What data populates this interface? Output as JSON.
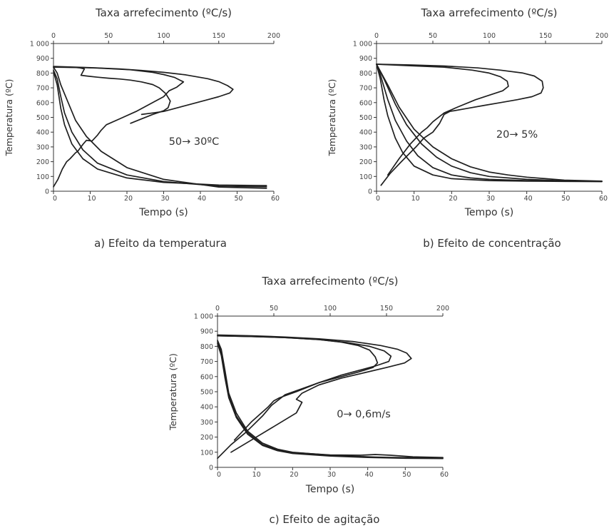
{
  "figure": {
    "top_axis_label": "Taxa arrefecimento (ºC/s)",
    "bottom_axis_label": "Tempo  (s)",
    "y_axis_label": "Temperatura (ºC)"
  },
  "chart_data": [
    {
      "type": "line",
      "caption": "a) Efeito da temperatura",
      "annotation": "50→ 30ºC",
      "xlabel": "Tempo  (s)",
      "x2label": "Taxa arrefecimento (ºC/s)",
      "ylabel": "Temperatura (ºC)",
      "xlim": [
        0,
        60
      ],
      "x2lim": [
        0,
        200
      ],
      "ylim": [
        0,
        1000
      ],
      "xticks": [
        0,
        10,
        20,
        30,
        40,
        50,
        60
      ],
      "x2ticks": [
        0,
        50,
        100,
        150,
        200
      ],
      "yticks": [
        0,
        100,
        200,
        300,
        400,
        500,
        600,
        700,
        800,
        900,
        1000
      ],
      "ytick_labels": [
        "0",
        "100",
        "200",
        "300",
        "400",
        "500",
        "600",
        "700",
        "800",
        "900",
        "1 000"
      ],
      "series": [
        {
          "axis": "time",
          "x": [
            0,
            1,
            2,
            3,
            5,
            8,
            12,
            20,
            30,
            45,
            58
          ],
          "y": [
            810,
            720,
            560,
            450,
            320,
            220,
            150,
            90,
            60,
            42,
            38
          ]
        },
        {
          "axis": "time",
          "x": [
            0,
            1,
            2,
            3,
            5,
            8,
            12,
            20,
            30,
            45,
            58
          ],
          "y": [
            820,
            760,
            640,
            530,
            400,
            280,
            190,
            110,
            65,
            35,
            30
          ]
        },
        {
          "axis": "time",
          "x": [
            0,
            1,
            2,
            4,
            6,
            9,
            13,
            20,
            30,
            45,
            58
          ],
          "y": [
            840,
            800,
            720,
            600,
            480,
            370,
            270,
            160,
            80,
            28,
            20
          ]
        },
        {
          "axis": "rate",
          "x": [
            0,
            10,
            22,
            30,
            40,
            50,
            70,
            90,
            100,
            110,
            118,
            112,
            105,
            100,
            90,
            75,
            60,
            48,
            43,
            40,
            35,
            30,
            27,
            25,
            22,
            20,
            15,
            12,
            8,
            4,
            0
          ],
          "y": [
            840,
            840,
            838,
            836,
            834,
            830,
            822,
            805,
            790,
            770,
            740,
            705,
            680,
            640,
            600,
            540,
            490,
            450,
            410,
            380,
            340,
            345,
            320,
            300,
            270,
            260,
            220,
            200,
            150,
            80,
            30
          ]
        },
        {
          "axis": "rate",
          "x": [
            0,
            20,
            40,
            60,
            80,
            100,
            120,
            140,
            150,
            158,
            163,
            160,
            150,
            140,
            120,
            110,
            100,
            90,
            80
          ],
          "y": [
            845,
            840,
            835,
            828,
            818,
            805,
            788,
            762,
            742,
            715,
            690,
            665,
            640,
            620,
            580,
            560,
            540,
            530,
            520
          ]
        },
        {
          "axis": "rate",
          "x": [
            0,
            20,
            24,
            28,
            25,
            30,
            40,
            50,
            60,
            70,
            80,
            90,
            96,
            102,
            106,
            104,
            100,
            90,
            80,
            70
          ],
          "y": [
            840,
            838,
            835,
            828,
            785,
            780,
            772,
            765,
            760,
            752,
            740,
            722,
            700,
            660,
            610,
            565,
            545,
            520,
            490,
            460
          ]
        }
      ]
    },
    {
      "type": "line",
      "caption": "b) Efeito de concentração",
      "annotation": "20→ 5%",
      "xlabel": "Tempo  (s)",
      "x2label": "Taxa arrefecimento (ºC/s)",
      "ylabel": "Temperatura (ºC)",
      "xlim": [
        0,
        60
      ],
      "x2lim": [
        0,
        200
      ],
      "ylim": [
        0,
        1000
      ],
      "xticks": [
        0,
        10,
        20,
        30,
        40,
        50,
        60
      ],
      "x2ticks": [
        0,
        50,
        100,
        150,
        200
      ],
      "yticks": [
        0,
        100,
        200,
        300,
        400,
        500,
        600,
        700,
        800,
        900,
        1000
      ],
      "ytick_labels": [
        "0",
        "100",
        "200",
        "300",
        "400",
        "500",
        "600",
        "700",
        "800",
        "900",
        "1 000"
      ],
      "series": [
        {
          "axis": "time",
          "x": [
            0,
            1,
            2,
            3,
            5,
            7,
            10,
            15,
            20,
            30,
            40,
            50,
            60
          ],
          "y": [
            860,
            760,
            620,
            510,
            360,
            260,
            170,
            110,
            85,
            72,
            68,
            66,
            65
          ]
        },
        {
          "axis": "time",
          "x": [
            0,
            1,
            3,
            5,
            8,
            11,
            15,
            20,
            25,
            30,
            40,
            50,
            60
          ],
          "y": [
            860,
            790,
            620,
            480,
            340,
            240,
            160,
            110,
            90,
            80,
            72,
            68,
            66
          ]
        },
        {
          "axis": "time",
          "x": [
            0,
            2,
            5,
            8,
            12,
            16,
            20,
            25,
            30,
            40,
            50,
            60
          ],
          "y": [
            860,
            760,
            590,
            450,
            320,
            230,
            170,
            125,
            100,
            80,
            70,
            67
          ]
        },
        {
          "axis": "time",
          "x": [
            0,
            3,
            6,
            10,
            15,
            20,
            25,
            30,
            35,
            40,
            50,
            60
          ],
          "y": [
            860,
            720,
            570,
            420,
            300,
            220,
            165,
            130,
            110,
            95,
            75,
            68
          ]
        },
        {
          "axis": "rate",
          "x": [
            0,
            30,
            60,
            90,
            110,
            130,
            140,
            147,
            148,
            146,
            138,
            125,
            110,
            95,
            80,
            65,
            60,
            56,
            50,
            42,
            35,
            22,
            12,
            4
          ],
          "y": [
            860,
            855,
            848,
            835,
            820,
            800,
            780,
            745,
            700,
            665,
            640,
            620,
            600,
            580,
            560,
            540,
            520,
            460,
            400,
            360,
            300,
            200,
            120,
            40
          ]
        },
        {
          "axis": "rate",
          "x": [
            0,
            30,
            60,
            85,
            100,
            110,
            116,
            117,
            112,
            100,
            88,
            72,
            60,
            50,
            45,
            40,
            35,
            30,
            20,
            10
          ],
          "y": [
            860,
            850,
            840,
            820,
            800,
            775,
            745,
            710,
            680,
            650,
            620,
            570,
            530,
            470,
            430,
            400,
            360,
            320,
            220,
            110
          ]
        }
      ]
    },
    {
      "type": "line",
      "caption": "c) Efeito de agitação",
      "annotation": "0→ 0,6m/s",
      "xlabel": "Tempo  (s)",
      "x2label": "Taxa arrefecimento (ºC/s)",
      "ylabel": "Temperatura (ºC)",
      "xlim": [
        0,
        60
      ],
      "x2lim": [
        0,
        200
      ],
      "ylim": [
        0,
        1000
      ],
      "xticks": [
        0,
        10,
        20,
        30,
        40,
        50,
        60
      ],
      "x2ticks": [
        0,
        50,
        100,
        150,
        200
      ],
      "yticks": [
        0,
        100,
        200,
        300,
        400,
        500,
        600,
        700,
        800,
        900,
        1000
      ],
      "ytick_labels": [
        "0",
        "100",
        "200",
        "300",
        "400",
        "500",
        "600",
        "700",
        "800",
        "900",
        "1 000"
      ],
      "series": [
        {
          "axis": "time",
          "x": [
            0,
            1,
            2,
            3,
            5,
            8,
            12,
            16,
            20,
            30,
            40,
            42,
            45,
            50,
            60
          ],
          "y": [
            840,
            780,
            640,
            490,
            360,
            240,
            160,
            120,
            100,
            80,
            70,
            68,
            66,
            64,
            62
          ]
        },
        {
          "axis": "time",
          "x": [
            0,
            1,
            2,
            3,
            5,
            8,
            12,
            16,
            20,
            30,
            38,
            42,
            46,
            52,
            60
          ],
          "y": [
            830,
            760,
            610,
            470,
            340,
            230,
            150,
            115,
            98,
            82,
            80,
            85,
            80,
            70,
            65
          ]
        },
        {
          "axis": "time",
          "x": [
            0,
            1,
            2,
            3,
            5,
            8,
            12,
            16,
            20,
            30,
            40,
            50,
            60
          ],
          "y": [
            820,
            740,
            590,
            460,
            330,
            220,
            145,
            110,
            92,
            75,
            65,
            60,
            58
          ]
        },
        {
          "axis": "rate",
          "x": [
            0,
            30,
            60,
            90,
            110,
            125,
            135,
            140,
            142,
            138,
            125,
            110,
            90,
            75,
            60,
            48,
            40,
            25,
            12,
            0
          ],
          "y": [
            870,
            865,
            858,
            845,
            828,
            805,
            775,
            730,
            690,
            660,
            630,
            600,
            560,
            520,
            480,
            410,
            340,
            230,
            150,
            60
          ]
        },
        {
          "axis": "rate",
          "x": [
            0,
            30,
            60,
            90,
            115,
            135,
            148,
            154,
            152,
            140,
            125,
            110,
            90,
            70,
            55,
            50,
            45,
            30,
            15
          ],
          "y": [
            870,
            865,
            858,
            845,
            825,
            800,
            770,
            735,
            700,
            670,
            640,
            610,
            560,
            500,
            460,
            440,
            400,
            300,
            180
          ]
        },
        {
          "axis": "rate",
          "x": [
            0,
            30,
            60,
            90,
            120,
            145,
            160,
            168,
            172,
            166,
            150,
            130,
            110,
            90,
            75,
            70,
            75,
            70,
            50,
            30,
            12
          ],
          "y": [
            875,
            870,
            862,
            850,
            832,
            805,
            780,
            755,
            720,
            690,
            660,
            625,
            590,
            545,
            490,
            450,
            430,
            360,
            270,
            180,
            100
          ]
        }
      ]
    }
  ]
}
